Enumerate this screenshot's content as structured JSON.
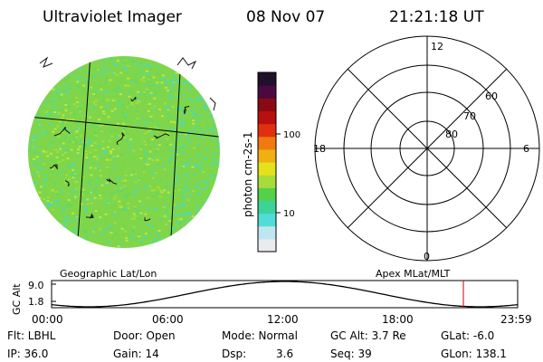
{
  "header": {
    "instrument": "Ultraviolet Imager",
    "date": "08 Nov 07",
    "time": "21:21:18 UT"
  },
  "colorbar": {
    "unit_label": "photon cm-2s-1",
    "ticks": [
      "100",
      "10"
    ],
    "colors": [
      "#e8ecf0",
      "#bfe6ee",
      "#52dcd8",
      "#3cd39a",
      "#52d24a",
      "#a8dc3a",
      "#e4e21a",
      "#f0b014",
      "#f07a10",
      "#e03010",
      "#b81010",
      "#8a0a14",
      "#4a0a40",
      "#20102a"
    ]
  },
  "left_panel": {
    "caption": "Geographic Lat/Lon",
    "image_colors": [
      "#74d64e",
      "#a6dc3c",
      "#5fd86a",
      "#50d9b0",
      "#c2e63a"
    ]
  },
  "right_panel": {
    "caption": "Apex MLat/MLT",
    "mlt_labels": {
      "top": "12",
      "bottom": "0",
      "left": "18",
      "right": "6"
    },
    "lat_labels": [
      "60",
      "70",
      "80"
    ]
  },
  "altitude_plot": {
    "ylabel": "GC Alt",
    "y_ticks": [
      "9.0",
      "1.8"
    ],
    "x_ticks": [
      "00:00",
      "06:00",
      "12:00",
      "18:00",
      "23:59"
    ],
    "current_marker_color": "#cc0000"
  },
  "status": {
    "row1": {
      "flt": "Flt: LBHL",
      "door": "Door: Open",
      "mode": "Mode: Normal",
      "gc_alt": "GC Alt: 3.7 Re",
      "glat": "GLat:  -6.0"
    },
    "row2": {
      "ip": "IP: 36.0",
      "gain": "Gain: 14",
      "dsp_label": "Dsp:",
      "dsp_value": "3.6",
      "seq": "Seq: 39",
      "glon": "GLon: 138.1"
    }
  }
}
